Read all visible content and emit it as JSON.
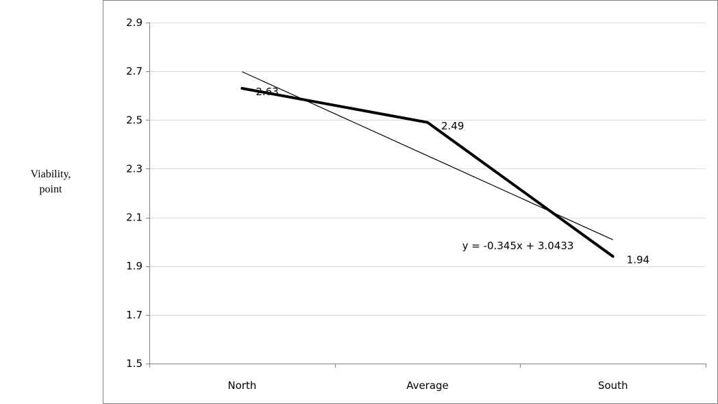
{
  "chart_data": {
    "type": "line",
    "categories": [
      "North",
      "Average",
      "South"
    ],
    "series": [
      {
        "values": [
          2.63,
          2.49,
          1.94
        ]
      }
    ],
    "data_labels": [
      "2.63",
      "2.49",
      "1.94"
    ],
    "trendline": {
      "equation": "y = -0.345x + 3.0433",
      "slope": -0.345,
      "intercept": 3.0433
    },
    "ylabel": "Viability, point",
    "ylabel_lines": [
      "Viability,",
      "point"
    ],
    "ylim": [
      1.5,
      2.9
    ],
    "yticks": [
      "1.5",
      "1.7",
      "1.9",
      "2.1",
      "2.3",
      "2.5",
      "2.7",
      "2.9"
    ],
    "ytick_values": [
      1.5,
      1.7,
      1.9,
      2.1,
      2.3,
      2.5,
      2.7,
      2.9
    ],
    "grid": true,
    "legend": "none",
    "colors": {
      "series": "#000000",
      "trendline": "#000000",
      "grid": "#d9d9d9",
      "axis": "#808080"
    }
  }
}
